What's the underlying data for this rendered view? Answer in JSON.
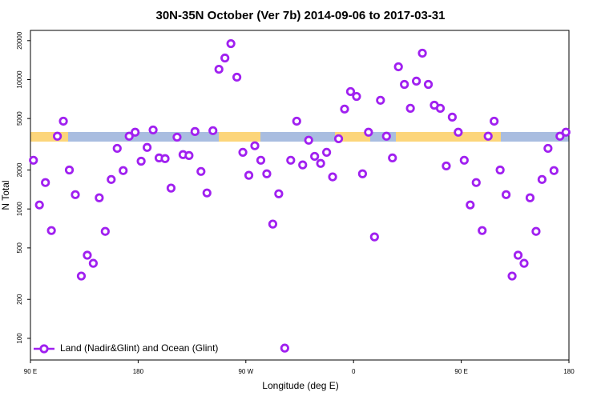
{
  "chart_data": {
    "type": "scatter",
    "title": "30N-35N October (Ver 7b)   2014-09-06 to 2017-03-31",
    "x_label": "Longitude (deg E)",
    "y_label": "N Total",
    "log_y": true,
    "legend": "bottom-left",
    "xlim": [
      90,
      540
    ],
    "xticks": [
      {
        "value": 90,
        "label": "90 E"
      },
      180,
      {
        "value": 270,
        "label": "90 W"
      },
      {
        "value": 360,
        "label": "0"
      },
      {
        "value": 450,
        "label": "90 E"
      },
      {
        "value": 540,
        "label": "180"
      }
    ],
    "ylim": [
      68,
      24000
    ],
    "yticks": [
      100,
      200,
      500,
      1000,
      2000,
      5000,
      10000,
      20000
    ],
    "x": [
      92.5,
      97.5,
      102.5,
      107.5,
      112.5,
      117.5,
      122.5,
      127.5,
      132.5,
      137.5,
      142.5,
      147.5,
      152.5,
      157.5,
      162.5,
      167.5,
      172.5,
      177.5,
      182.5,
      187.5,
      192.5,
      197.5,
      202.5,
      207.5,
      212.5,
      217.5,
      222.5,
      227.5,
      232.5,
      237.5,
      242.5,
      247.5,
      252.5,
      257.5,
      262.5,
      267.5,
      272.5,
      277.5,
      282.5,
      287.5,
      292.5,
      297.5,
      302.5,
      307.5,
      312.5,
      317.5,
      322.5,
      327.5,
      332.5,
      337.5,
      342.5,
      347.5,
      352.5,
      357.5,
      362.5,
      367.5,
      372.5,
      377.5,
      382.5,
      387.5,
      392.5,
      397.5,
      402.5,
      407.5,
      412.5,
      417.5,
      422.5,
      427.5,
      432.5,
      437.5,
      442.5,
      447.5,
      452.5,
      457.5,
      462.5,
      467.5,
      472.5,
      477.5,
      482.5,
      487.5,
      492.5,
      497.5,
      502.5,
      507.5,
      512.5,
      517.5,
      522.5,
      527.5,
      532.5,
      537.5
    ],
    "series": [
      {
        "name": "Land (Nadir&Glint) and Ocean (Glint)",
        "color": "#a020f0",
        "values": [
          2380,
          1074,
          1600,
          681,
          3650,
          4770,
          2000,
          1290,
          303,
          439,
          380,
          1220,
          671,
          1690,
          2940,
          1980,
          3650,
          3920,
          2340,
          2990,
          4080,
          2480,
          2450,
          1450,
          3590,
          2630,
          2590,
          3970,
          1950,
          1330,
          4030,
          12020,
          14680,
          18960,
          10440,
          2740,
          1820,
          3080,
          2380,
          1870,
          764,
          1310,
          84,
          2380,
          4770,
          2190,
          3400,
          2550,
          2250,
          2740,
          1770,
          3490,
          5920,
          8080,
          7410,
          1870,
          3920,
          608,
          6920,
          3650,
          2480,
          12560,
          9180,
          6000,
          9730,
          16000,
          9180,
          6340,
          6000,
          2150,
          5130,
          3920,
          2380,
          1074,
          1600,
          681,
          3650,
          4770,
          2000,
          1290,
          303,
          439,
          380,
          1220,
          671,
          1690,
          2940,
          1980,
          3650,
          3920
        ]
      }
    ]
  }
}
